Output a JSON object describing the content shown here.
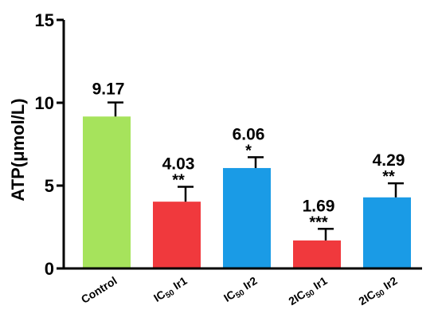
{
  "chart_data": {
    "type": "bar",
    "title": "",
    "xlabel": "",
    "ylabel": "ATP(μmol/L)",
    "ylim": [
      0,
      15
    ],
    "yticks": [
      0,
      5,
      10,
      15
    ],
    "grid": false,
    "legend": "none",
    "categories": [
      {
        "parts": [
          "Control"
        ]
      },
      {
        "parts": [
          "IC",
          "50",
          " Ir1"
        ]
      },
      {
        "parts": [
          "IC",
          "50",
          " Ir2"
        ]
      },
      {
        "parts": [
          "2IC",
          "50",
          "  Ir1"
        ]
      },
      {
        "parts": [
          "2IC",
          "50",
          " Ir2"
        ]
      }
    ],
    "values": [
      9.17,
      4.03,
      6.06,
      1.69,
      4.29
    ],
    "error_upper": [
      0.85,
      0.9,
      0.65,
      0.7,
      0.85
    ],
    "value_labels": [
      "9.17",
      "4.03",
      "6.06",
      "1.69",
      "4.29"
    ],
    "significance": [
      "",
      "**",
      "*",
      "***",
      "**"
    ],
    "bar_colors": [
      "#a6e35c",
      "#f0393d",
      "#1a9be6",
      "#f0393d",
      "#1a9be6"
    ]
  }
}
